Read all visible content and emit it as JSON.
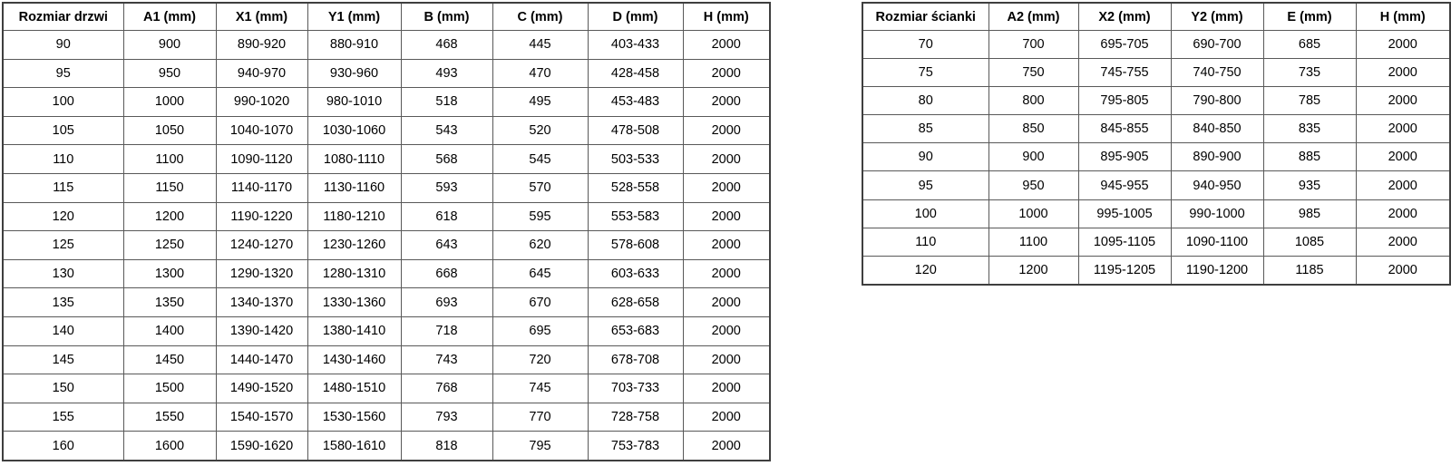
{
  "page": {
    "background": "#ffffff",
    "text_color": "#000000",
    "inner_border_color": "#595959",
    "outer_border_color": "#3f3f3f"
  },
  "tables": [
    {
      "id": "door-sizes",
      "title_column": "Rozmiar drzwi",
      "headers": [
        "Rozmiar drzwi",
        "A1 (mm)",
        "X1 (mm)",
        "Y1 (mm)",
        "B (mm)",
        "C (mm)",
        "D (mm)",
        "H (mm)"
      ],
      "rows": [
        [
          "90",
          "900",
          "890-920",
          "880-910",
          "468",
          "445",
          "403-433",
          "2000"
        ],
        [
          "95",
          "950",
          "940-970",
          "930-960",
          "493",
          "470",
          "428-458",
          "2000"
        ],
        [
          "100",
          "1000",
          "990-1020",
          "980-1010",
          "518",
          "495",
          "453-483",
          "2000"
        ],
        [
          "105",
          "1050",
          "1040-1070",
          "1030-1060",
          "543",
          "520",
          "478-508",
          "2000"
        ],
        [
          "110",
          "1100",
          "1090-1120",
          "1080-1110",
          "568",
          "545",
          "503-533",
          "2000"
        ],
        [
          "115",
          "1150",
          "1140-1170",
          "1130-1160",
          "593",
          "570",
          "528-558",
          "2000"
        ],
        [
          "120",
          "1200",
          "1190-1220",
          "1180-1210",
          "618",
          "595",
          "553-583",
          "2000"
        ],
        [
          "125",
          "1250",
          "1240-1270",
          "1230-1260",
          "643",
          "620",
          "578-608",
          "2000"
        ],
        [
          "130",
          "1300",
          "1290-1320",
          "1280-1310",
          "668",
          "645",
          "603-633",
          "2000"
        ],
        [
          "135",
          "1350",
          "1340-1370",
          "1330-1360",
          "693",
          "670",
          "628-658",
          "2000"
        ],
        [
          "140",
          "1400",
          "1390-1420",
          "1380-1410",
          "718",
          "695",
          "653-683",
          "2000"
        ],
        [
          "145",
          "1450",
          "1440-1470",
          "1430-1460",
          "743",
          "720",
          "678-708",
          "2000"
        ],
        [
          "150",
          "1500",
          "1490-1520",
          "1480-1510",
          "768",
          "745",
          "703-733",
          "2000"
        ],
        [
          "155",
          "1550",
          "1540-1570",
          "1530-1560",
          "793",
          "770",
          "728-758",
          "2000"
        ],
        [
          "160",
          "1600",
          "1590-1620",
          "1580-1610",
          "818",
          "795",
          "753-783",
          "2000"
        ]
      ]
    },
    {
      "id": "wall-sizes",
      "title_column": "Rozmiar ścianki",
      "headers": [
        "Rozmiar ścianki",
        "A2 (mm)",
        "X2 (mm)",
        "Y2 (mm)",
        "E (mm)",
        "H (mm)"
      ],
      "rows": [
        [
          "70",
          "700",
          "695-705",
          "690-700",
          "685",
          "2000"
        ],
        [
          "75",
          "750",
          "745-755",
          "740-750",
          "735",
          "2000"
        ],
        [
          "80",
          "800",
          "795-805",
          "790-800",
          "785",
          "2000"
        ],
        [
          "85",
          "850",
          "845-855",
          "840-850",
          "835",
          "2000"
        ],
        [
          "90",
          "900",
          "895-905",
          "890-900",
          "885",
          "2000"
        ],
        [
          "95",
          "950",
          "945-955",
          "940-950",
          "935",
          "2000"
        ],
        [
          "100",
          "1000",
          "995-1005",
          "990-1000",
          "985",
          "2000"
        ],
        [
          "110",
          "1100",
          "1095-1105",
          "1090-1100",
          "1085",
          "2000"
        ],
        [
          "120",
          "1200",
          "1195-1205",
          "1190-1200",
          "1185",
          "2000"
        ]
      ]
    }
  ]
}
